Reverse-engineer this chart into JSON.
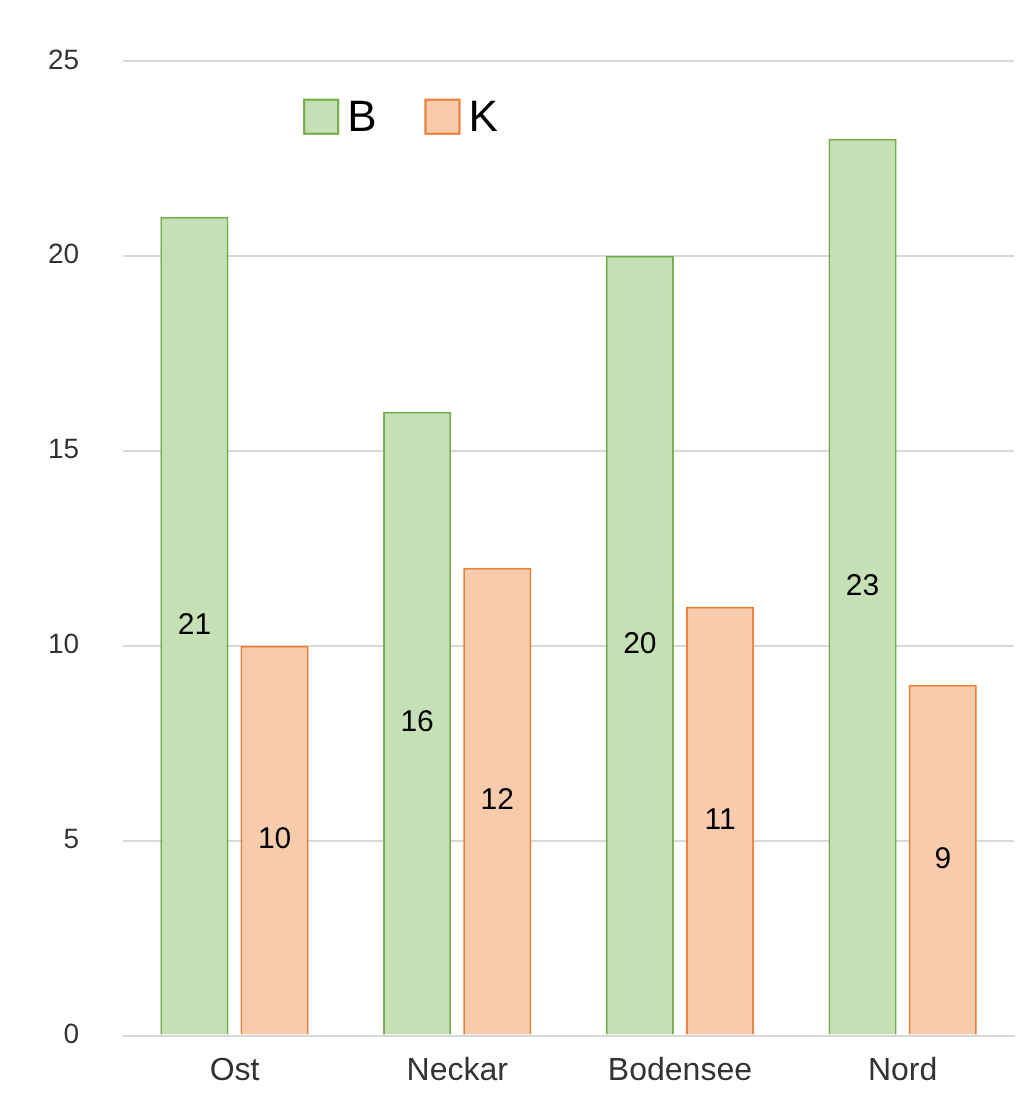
{
  "chart_data": {
    "type": "bar",
    "categories": [
      "Ost",
      "Neckar",
      "Bodensee",
      "Nord"
    ],
    "series": [
      {
        "name": "B",
        "color": "#c5e0b4",
        "values": [
          21,
          16,
          20,
          23
        ]
      },
      {
        "name": "K",
        "color": "#f8cbad",
        "values": [
          10,
          12,
          11,
          9
        ]
      }
    ],
    "ylim": [
      0,
      25
    ],
    "yticks": [
      0,
      5,
      10,
      15,
      20,
      25
    ],
    "grid": "y",
    "legend": "top left",
    "data_labels": true
  }
}
